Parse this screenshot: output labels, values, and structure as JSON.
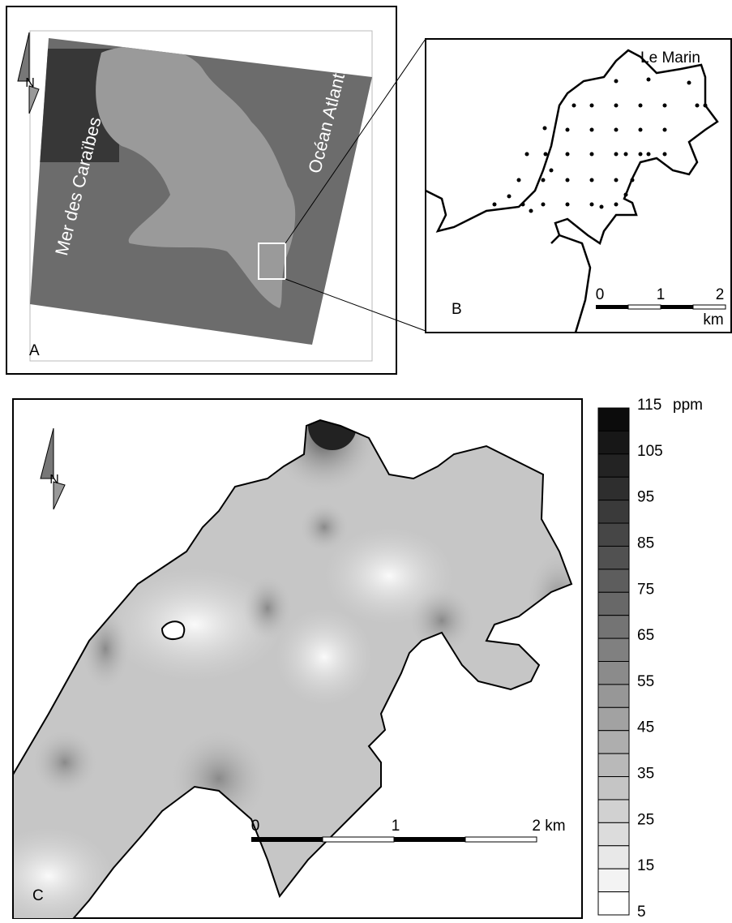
{
  "panel_a": {
    "label": "A",
    "north": "N",
    "sea_west": "Mer des Caraïbes",
    "sea_east": "Océan Atlanti"
  },
  "panel_b": {
    "label": "B",
    "place": "Le Marin",
    "scale_ticks": [
      "0",
      "1",
      "2"
    ],
    "scale_unit": "km"
  },
  "panel_c": {
    "label": "C",
    "north": "N",
    "scale_ticks": [
      "0",
      "1",
      "2 km"
    ]
  },
  "legend": {
    "unit": "ppm",
    "levels": [
      5,
      10,
      15,
      20,
      25,
      30,
      35,
      40,
      45,
      50,
      55,
      60,
      65,
      70,
      75,
      80,
      85,
      90,
      95,
      100,
      105,
      110,
      115
    ],
    "labels": [
      "115",
      "105",
      "95",
      "85",
      "75",
      "65",
      "55",
      "45",
      "35",
      "25",
      "15",
      "5"
    ]
  }
}
